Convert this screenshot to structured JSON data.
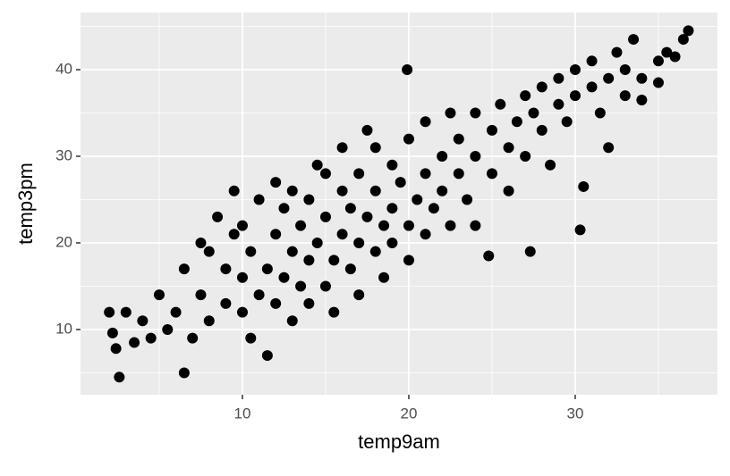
{
  "chart_data": {
    "type": "scatter",
    "x_label": "temp9am",
    "y_label": "temp3pm",
    "xlim": [
      0.27,
      38.55
    ],
    "ylim": [
      2.47,
      46.6
    ],
    "xticks": [
      10,
      20,
      30
    ],
    "yticks": [
      10,
      20,
      30,
      40
    ],
    "x_minor_ticks": [
      5,
      15,
      25,
      35
    ],
    "y_minor_ticks": [
      5,
      15,
      25,
      35,
      45
    ],
    "grid": true,
    "color": "#000000",
    "x": [
      2,
      2.2,
      2.4,
      2.6,
      3,
      3.5,
      4,
      4.5,
      5,
      5.5,
      6,
      6.5,
      6.5,
      7,
      7.5,
      7.5,
      8,
      8,
      8.5,
      9,
      9,
      9.5,
      9.5,
      10,
      10,
      10,
      10.5,
      10.5,
      11,
      11,
      11.5,
      11.5,
      12,
      12,
      12,
      12.5,
      12.5,
      13,
      13,
      13,
      13.5,
      13.5,
      14,
      14,
      14,
      14.5,
      14.5,
      15,
      15,
      15,
      15.5,
      15.5,
      16,
      16,
      16,
      16.5,
      16.5,
      17,
      17,
      17,
      17.5,
      17.5,
      18,
      18,
      18,
      18.5,
      18.5,
      19,
      19,
      19,
      19.5,
      19.9,
      20,
      20,
      20,
      20.5,
      21,
      21,
      21,
      21.5,
      22,
      22,
      22.5,
      22.5,
      23,
      23,
      23.5,
      24,
      24,
      24,
      24.8,
      25,
      25,
      25.5,
      26,
      26,
      26.5,
      27,
      27,
      27.3,
      27.5,
      28,
      28,
      28.5,
      29,
      29,
      29.5,
      30,
      30,
      30.3,
      30.5,
      31,
      31,
      31.5,
      32,
      32,
      32.5,
      33,
      33,
      33.5,
      34,
      34,
      35,
      35,
      35.5,
      36,
      36.5,
      36.8
    ],
    "y": [
      12,
      9.6,
      7.8,
      4.5,
      12,
      8.5,
      11,
      9,
      14,
      10,
      12,
      5,
      17,
      9,
      14,
      20,
      11,
      19,
      23,
      13,
      17,
      26,
      21,
      12,
      16,
      22,
      9,
      19,
      14,
      25,
      7,
      17,
      13,
      21,
      27,
      16,
      24,
      11,
      19,
      26,
      15,
      22,
      13,
      18,
      25,
      29,
      20,
      15,
      23,
      28,
      18,
      12,
      21,
      26,
      31,
      17,
      24,
      14,
      20,
      28,
      33,
      23,
      19,
      26,
      31,
      16,
      22,
      24,
      29,
      20,
      27,
      40,
      22,
      32,
      18,
      25,
      28,
      21,
      34,
      24,
      30,
      26,
      22,
      35,
      28,
      32,
      25,
      30,
      35,
      22,
      18.5,
      33,
      28,
      36,
      31,
      26,
      34,
      37,
      30,
      19,
      35,
      38,
      33,
      29,
      39,
      36,
      34,
      40,
      37,
      21.5,
      26.5,
      38,
      41,
      35,
      39,
      31,
      42,
      37,
      40,
      43.5,
      39,
      36.5,
      41,
      38.5,
      42,
      41.5,
      43.5,
      44.5
    ]
  }
}
